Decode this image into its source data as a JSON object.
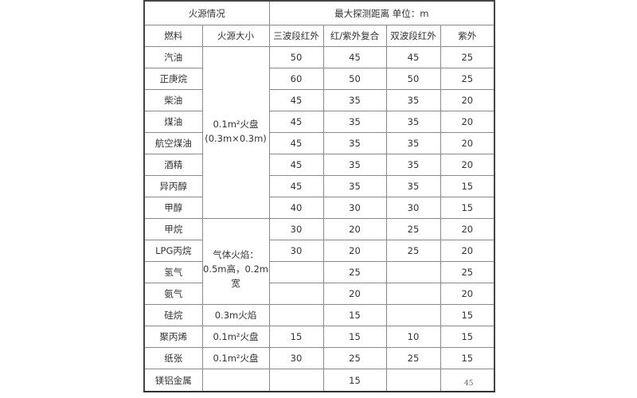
{
  "header": {
    "fire_source": "火源情况",
    "max_distance": "最大探测距离 单位：m",
    "columns": [
      "燃料",
      "火源大小",
      "三波段红外",
      "红/紫外复合",
      "双波段红外",
      "紫外"
    ]
  },
  "size_groups": {
    "disc_small": "0.1m²火盘\n(0.3m×0.3m)",
    "gas_flame": "气体火焰：0.5m高，0.2m宽",
    "flame_03": "0.3m火焰",
    "disc_01": "0.1m²火盘"
  },
  "rows": [
    {
      "fuel": "汽油",
      "v": [
        "50",
        "45",
        "45",
        "25"
      ]
    },
    {
      "fuel": "正庚烷",
      "v": [
        "60",
        "50",
        "50",
        "25"
      ]
    },
    {
      "fuel": "柴油",
      "v": [
        "45",
        "35",
        "35",
        "20"
      ]
    },
    {
      "fuel": "煤油",
      "v": [
        "45",
        "35",
        "35",
        "20"
      ]
    },
    {
      "fuel": "航空煤油",
      "v": [
        "45",
        "35",
        "35",
        "20"
      ]
    },
    {
      "fuel": "酒精",
      "v": [
        "45",
        "35",
        "35",
        "20"
      ]
    },
    {
      "fuel": "异丙醇",
      "v": [
        "45",
        "35",
        "35",
        "15"
      ]
    },
    {
      "fuel": "甲醇",
      "v": [
        "40",
        "30",
        "30",
        "15"
      ]
    },
    {
      "fuel": "甲烷",
      "v": [
        "30",
        "20",
        "25",
        "20"
      ]
    },
    {
      "fuel": "LPG丙烷",
      "v": [
        "30",
        "20",
        "25",
        "20"
      ]
    },
    {
      "fuel": "氢气",
      "v": [
        "",
        "25",
        "",
        "25"
      ]
    },
    {
      "fuel": "氨气",
      "v": [
        "",
        "20",
        "",
        "20"
      ]
    },
    {
      "fuel": "硅烷",
      "size": "0.3m火焰",
      "v": [
        "",
        "15",
        "",
        "15"
      ]
    },
    {
      "fuel": "聚丙烯",
      "size": "0.1m²火盘",
      "v": [
        "15",
        "15",
        "10",
        "15"
      ]
    },
    {
      "fuel": "纸张",
      "size": "0.1m²火盘",
      "v": [
        "30",
        "25",
        "25",
        "15"
      ]
    },
    {
      "fuel": "镁铝金属",
      "size": "",
      "v": [
        "",
        "15",
        "",
        ""
      ]
    }
  ],
  "page_number": "45"
}
